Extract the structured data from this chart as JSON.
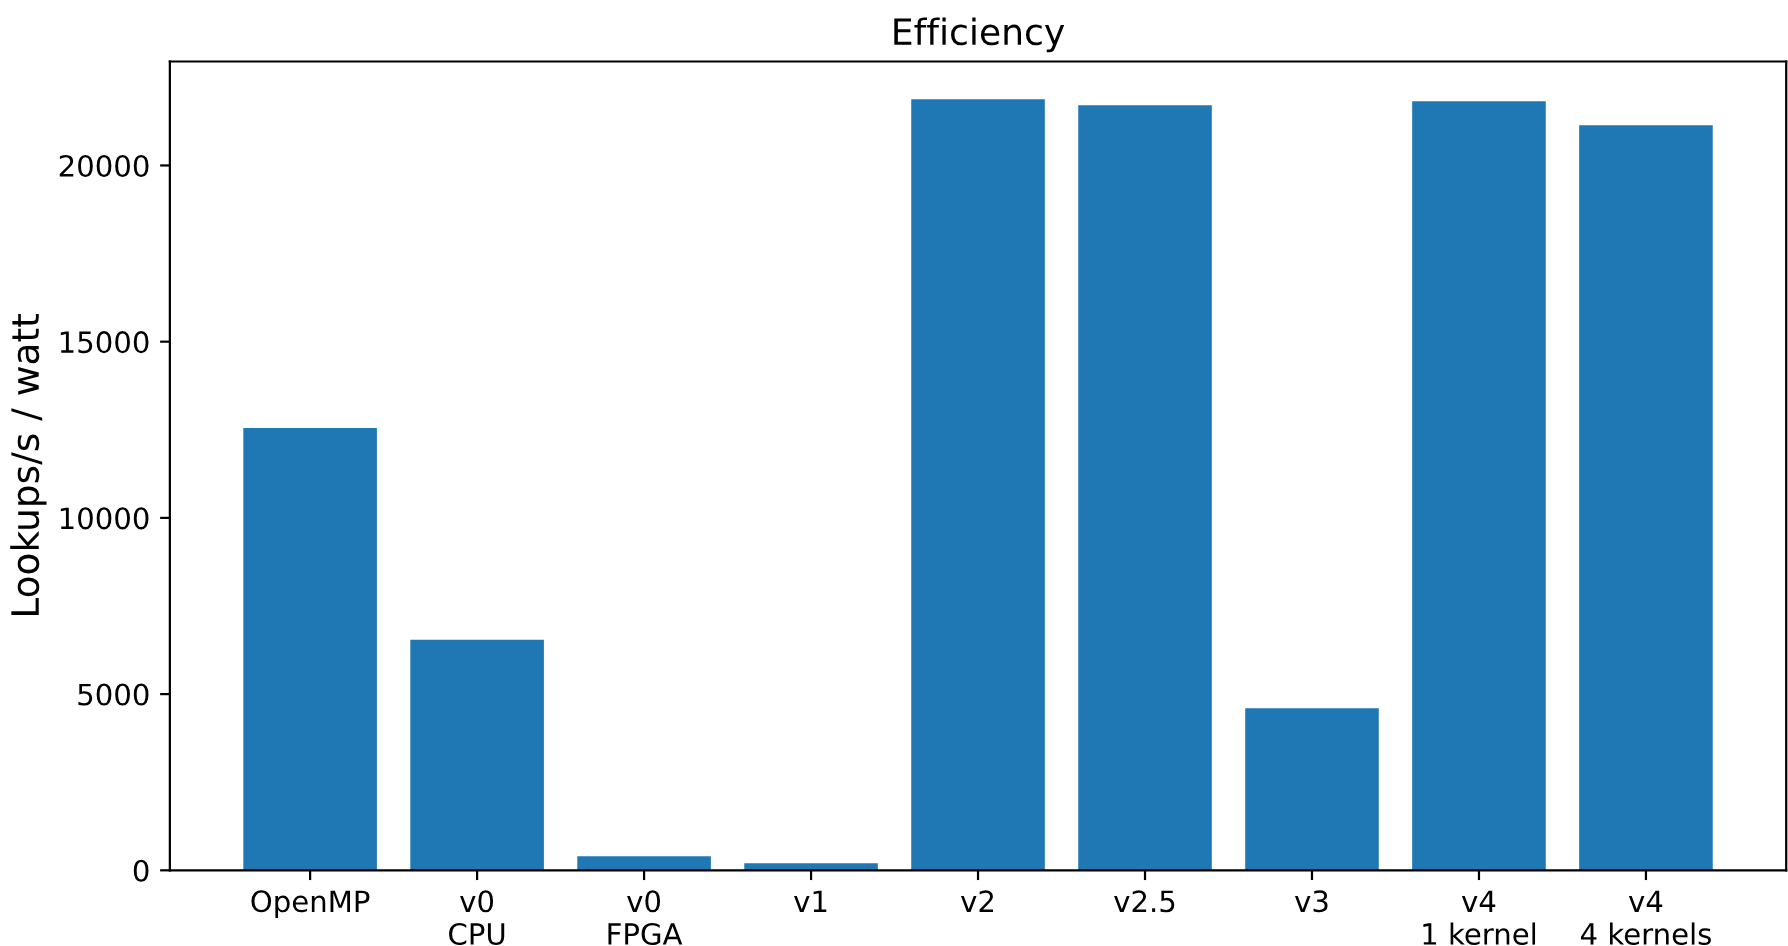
{
  "chart_data": {
    "type": "bar",
    "title": "Efficiency",
    "ylabel": "Lookups/s / watt",
    "categories": [
      "OpenMP",
      "v0\nCPU",
      "v0\nFPGA",
      "v1",
      "v2",
      "v2.5",
      "v3",
      "v4\n1 kernel",
      "v4\n4 kernels"
    ],
    "values": [
      12550,
      6540,
      400,
      200,
      21880,
      21710,
      4600,
      21820,
      21140
    ],
    "color": "#1f77b4",
    "ylim": [
      0,
      22950
    ],
    "yticks": [
      0,
      5000,
      10000,
      15000,
      20000
    ],
    "grid": false,
    "legend": false
  }
}
